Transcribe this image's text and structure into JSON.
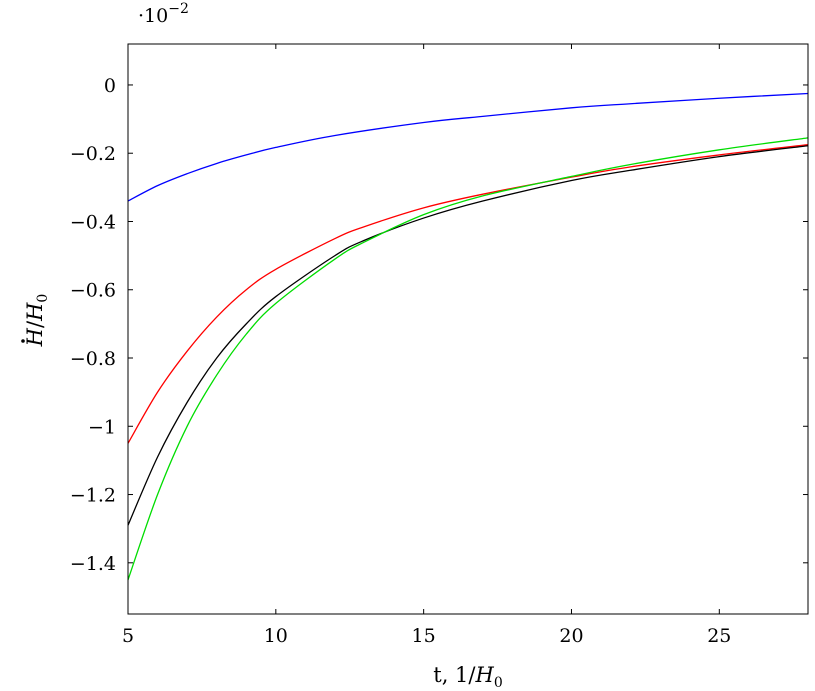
{
  "chart_data": {
    "type": "line",
    "title": "",
    "xlabel_main": "t, 1/",
    "xlabel_var": "H",
    "xlabel_sub": "0",
    "ylabel_var1": "H",
    "ylabel_mid": "/",
    "ylabel_var2": "H",
    "ylabel_sub": "0",
    "y_multiplier_base": "·10",
    "y_multiplier_exp": "−2",
    "xlim": [
      5,
      28
    ],
    "ylim": [
      -1.55,
      0.12
    ],
    "x_ticks": [
      5,
      10,
      15,
      20,
      25
    ],
    "x_tick_labels": [
      "5",
      "10",
      "15",
      "20",
      "25"
    ],
    "y_ticks": [
      0,
      -0.2,
      -0.4,
      -0.6,
      -0.8,
      -1,
      -1.2,
      -1.4
    ],
    "y_tick_labels": [
      "0",
      "−0.2",
      "−0.4",
      "−0.6",
      "−0.8",
      "−1",
      "−1.2",
      "−1.4"
    ],
    "grid": false,
    "series": [
      {
        "color": "#0000ff",
        "x": [
          5,
          6,
          7,
          8,
          9,
          10,
          12,
          15,
          17,
          20,
          22,
          25,
          28
        ],
        "y": [
          -0.34,
          -0.295,
          -0.26,
          -0.23,
          -0.205,
          -0.183,
          -0.148,
          -0.11,
          -0.092,
          -0.067,
          -0.055,
          -0.039,
          -0.025
        ]
      },
      {
        "color": "#ff0000",
        "x": [
          5,
          6,
          7,
          8,
          9,
          10,
          12,
          13,
          15,
          17,
          20,
          22,
          25,
          28
        ],
        "y": [
          -1.05,
          -0.9,
          -0.78,
          -0.68,
          -0.6,
          -0.54,
          -0.45,
          -0.415,
          -0.36,
          -0.32,
          -0.27,
          -0.24,
          -0.205,
          -0.175
        ]
      },
      {
        "color": "#000000",
        "x": [
          5,
          6,
          7,
          8,
          9,
          10,
          12,
          13,
          15,
          17,
          20,
          22,
          25,
          28
        ],
        "y": [
          -1.29,
          -1.09,
          -0.93,
          -0.8,
          -0.7,
          -0.62,
          -0.5,
          -0.455,
          -0.39,
          -0.34,
          -0.28,
          -0.25,
          -0.21,
          -0.178
        ]
      },
      {
        "color": "#00dd00",
        "x": [
          5,
          6,
          7,
          8,
          9,
          10,
          12,
          13,
          15,
          17,
          20,
          22,
          25,
          28
        ],
        "y": [
          -1.45,
          -1.2,
          -1.0,
          -0.85,
          -0.73,
          -0.64,
          -0.51,
          -0.46,
          -0.38,
          -0.325,
          -0.268,
          -0.233,
          -0.19,
          -0.155
        ]
      }
    ]
  }
}
